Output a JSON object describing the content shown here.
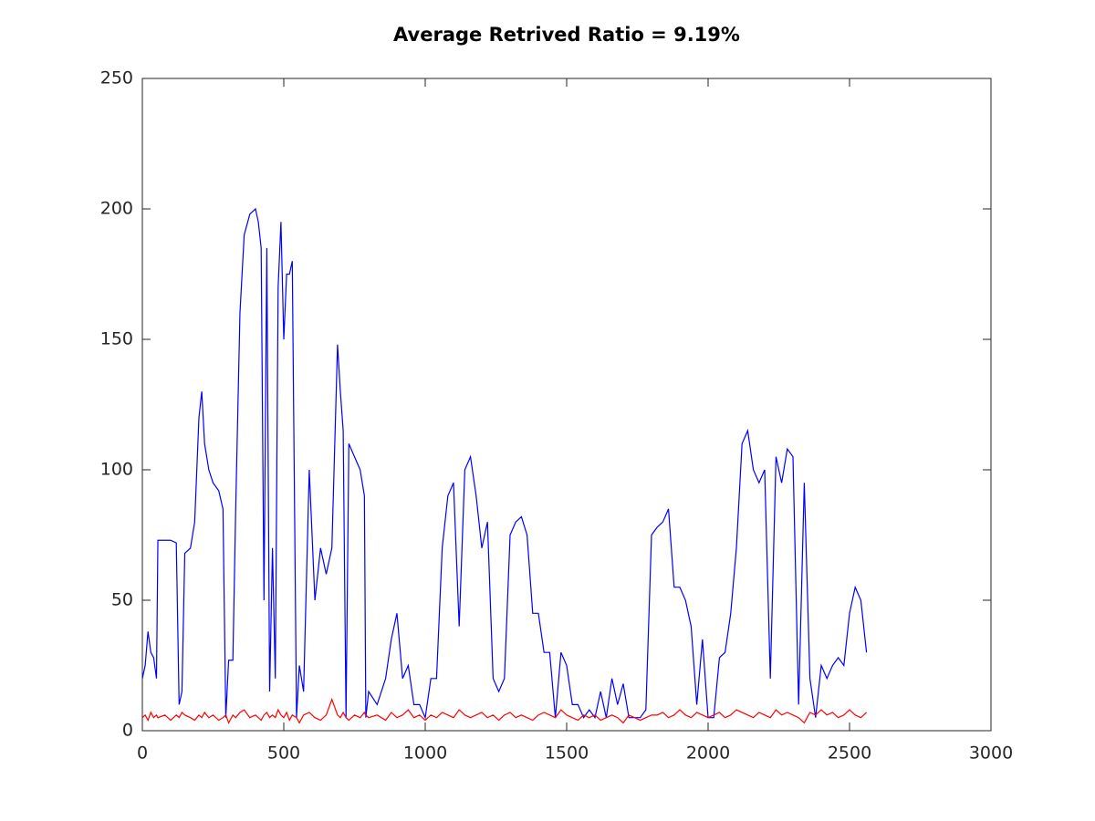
{
  "chart_data": {
    "type": "line",
    "title": "Average Retrived Ratio = 9.19%",
    "x": [
      0,
      10,
      20,
      30,
      40,
      50,
      55,
      80,
      100,
      120,
      130,
      140,
      150,
      170,
      185,
      200,
      210,
      220,
      235,
      250,
      270,
      285,
      295,
      305,
      320,
      330,
      345,
      360,
      380,
      400,
      410,
      420,
      430,
      440,
      450,
      460,
      470,
      480,
      490,
      500,
      510,
      520,
      530,
      545,
      555,
      570,
      590,
      610,
      630,
      650,
      670,
      690,
      700,
      710,
      720,
      730,
      750,
      770,
      785,
      790,
      800,
      830,
      860,
      880,
      900,
      920,
      940,
      960,
      980,
      1000,
      1020,
      1040,
      1060,
      1080,
      1100,
      1120,
      1140,
      1160,
      1180,
      1200,
      1220,
      1240,
      1260,
      1280,
      1300,
      1320,
      1340,
      1360,
      1380,
      1400,
      1420,
      1440,
      1460,
      1480,
      1500,
      1520,
      1540,
      1560,
      1580,
      1600,
      1620,
      1640,
      1660,
      1680,
      1700,
      1720,
      1740,
      1760,
      1780,
      1800,
      1820,
      1840,
      1860,
      1880,
      1900,
      1920,
      1940,
      1960,
      1980,
      2000,
      2020,
      2040,
      2060,
      2080,
      2100,
      2120,
      2140,
      2160,
      2180,
      2200,
      2220,
      2240,
      2260,
      2280,
      2300,
      2320,
      2340,
      2360,
      2380,
      2400,
      2420,
      2440,
      2460,
      2480,
      2500,
      2520,
      2540,
      2560
    ],
    "series": [
      {
        "color": "#0000ff",
        "values": [
          20,
          25,
          38,
          30,
          28,
          20,
          73,
          73,
          73,
          72,
          10,
          15,
          68,
          70,
          80,
          120,
          130,
          110,
          100,
          95,
          92,
          85,
          5,
          27,
          27,
          85,
          160,
          190,
          198,
          200,
          195,
          185,
          50,
          185,
          15,
          70,
          20,
          170,
          195,
          150,
          175,
          175,
          180,
          5,
          25,
          15,
          100,
          50,
          70,
          60,
          70,
          148,
          130,
          115,
          5,
          110,
          105,
          100,
          90,
          5,
          15,
          10,
          20,
          35,
          45,
          20,
          25,
          10,
          10,
          5,
          20,
          20,
          70,
          90,
          95,
          40,
          100,
          105,
          90,
          70,
          80,
          20,
          15,
          20,
          75,
          80,
          82,
          75,
          45,
          45,
          30,
          30,
          5,
          30,
          25,
          10,
          10,
          5,
          8,
          5,
          15,
          5,
          20,
          10,
          18,
          5,
          5,
          5,
          8,
          75,
          78,
          80,
          85,
          55,
          55,
          50,
          40,
          10,
          35,
          5,
          5,
          28,
          30,
          45,
          70,
          110,
          115,
          100,
          95,
          100,
          20,
          105,
          95,
          108,
          105,
          10,
          95,
          20,
          5,
          25,
          20,
          25,
          28,
          25,
          45,
          55,
          50,
          30
        ]
      },
      {
        "color": "#ff0000",
        "values": [
          5,
          6,
          4,
          7,
          5,
          6,
          5,
          6,
          4,
          6,
          5,
          7,
          6,
          5,
          4,
          6,
          5,
          7,
          5,
          6,
          4,
          5,
          6,
          3,
          6,
          5,
          7,
          8,
          5,
          6,
          5,
          4,
          6,
          7,
          5,
          6,
          5,
          8,
          6,
          5,
          7,
          4,
          6,
          5,
          3,
          6,
          7,
          5,
          4,
          6,
          12,
          6,
          5,
          7,
          5,
          4,
          6,
          5,
          7,
          6,
          5,
          6,
          4,
          7,
          5,
          6,
          8,
          5,
          6,
          4,
          6,
          5,
          7,
          6,
          5,
          8,
          6,
          5,
          6,
          7,
          5,
          6,
          4,
          6,
          7,
          5,
          6,
          5,
          4,
          6,
          7,
          6,
          5,
          8,
          6,
          5,
          4,
          6,
          5,
          6,
          4,
          5,
          6,
          5,
          3,
          6,
          5,
          4,
          5,
          6,
          6,
          7,
          5,
          6,
          8,
          6,
          5,
          7,
          6,
          5,
          6,
          7,
          5,
          6,
          8,
          7,
          6,
          5,
          7,
          6,
          5,
          8,
          6,
          7,
          6,
          5,
          3,
          7,
          6,
          8,
          6,
          7,
          5,
          6,
          8,
          6,
          5,
          7
        ]
      }
    ],
    "xlim": [
      0,
      3000
    ],
    "xticks": [
      0,
      500,
      1000,
      1500,
      2000,
      2500,
      3000
    ],
    "ylim": [
      0,
      250
    ],
    "yticks": [
      0,
      50,
      100,
      150,
      200,
      250
    ]
  }
}
